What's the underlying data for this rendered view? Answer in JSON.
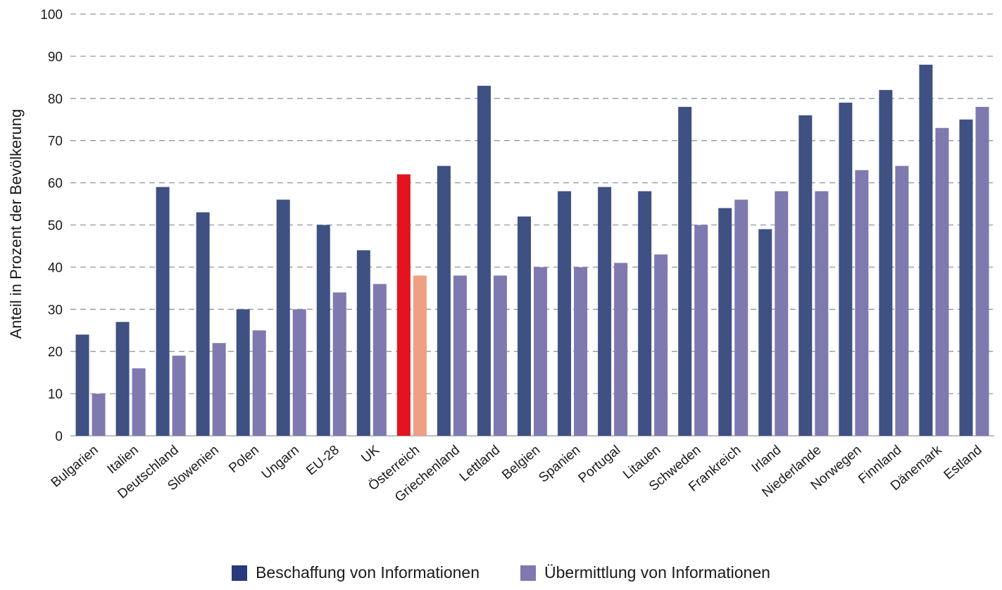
{
  "chart_data": {
    "type": "bar",
    "ylabel": "Anteil in Prozent der Bevölkerung",
    "ylim": [
      0,
      100
    ],
    "yticks": [
      0,
      10,
      20,
      30,
      40,
      50,
      60,
      70,
      80,
      90,
      100
    ],
    "grid": true,
    "legend_position": "bottom",
    "categories": [
      "Bulgarien",
      "Italien",
      "Deutschland",
      "Slowenien",
      "Polen",
      "Ungarn",
      "EU-28",
      "UK",
      "Österreich",
      "Griechenland",
      "Lettland",
      "Belgien",
      "Spanien",
      "Portugal",
      "Litauen",
      "Schweden",
      "Frankreich",
      "Irland",
      "Niederlande",
      "Norwegen",
      "Finnland",
      "Dänemark",
      "Estland"
    ],
    "highlight_category": "Österreich",
    "series": [
      {
        "name": "Beschaffung von Informationen",
        "color": "#3f5083",
        "highlight_color": "#e3141f",
        "values": [
          24,
          27,
          59,
          53,
          30,
          56,
          50,
          44,
          62,
          64,
          83,
          52,
          58,
          59,
          58,
          78,
          54,
          49,
          76,
          79,
          82,
          88,
          75
        ]
      },
      {
        "name": "Übermittlung von Informationen",
        "color": "#7e7aaf",
        "highlight_color": "#ef9f82",
        "values": [
          10,
          16,
          19,
          22,
          25,
          30,
          34,
          36,
          38,
          38,
          38,
          40,
          40,
          41,
          43,
          50,
          56,
          58,
          58,
          63,
          64,
          73,
          78
        ]
      }
    ]
  },
  "legend": {
    "items": [
      {
        "label": "Beschaffung von Informationen",
        "color": "#2b3a7c"
      },
      {
        "label": "Übermittlung von Informationen",
        "color": "#7e7aaf"
      }
    ]
  }
}
